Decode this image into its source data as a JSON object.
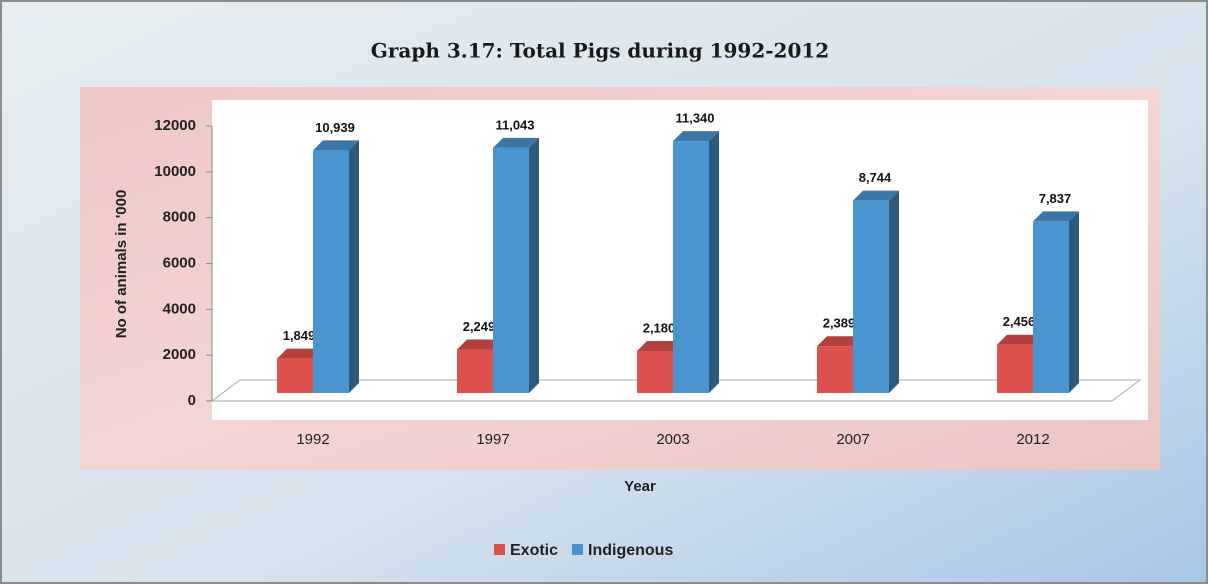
{
  "chart_data": {
    "type": "bar3d",
    "title": "Graph 3.17: Total Pigs during 1992-2012",
    "xlabel": "Year",
    "ylabel": "No of animals in '000",
    "categories": [
      "1992",
      "1997",
      "2003",
      "2007",
      "2012"
    ],
    "series": [
      {
        "name": "Exotic",
        "color": "#dc514b",
        "values": [
          1849,
          2249,
          2180,
          2389,
          2456
        ],
        "value_labels": [
          "1,849",
          "2,249",
          "2,180",
          "2,389",
          "2,456"
        ]
      },
      {
        "name": "Indigenous",
        "color": "#4a94cf",
        "values": [
          10939,
          11043,
          11340,
          8744,
          7837
        ],
        "value_labels": [
          "10,939",
          "11,043",
          "11,340",
          "8,744",
          "7,837"
        ]
      }
    ],
    "ylim": [
      0,
      12000
    ],
    "yticks": [
      0,
      2000,
      4000,
      6000,
      8000,
      10000,
      12000
    ],
    "grid": false,
    "legend": "bottom"
  }
}
